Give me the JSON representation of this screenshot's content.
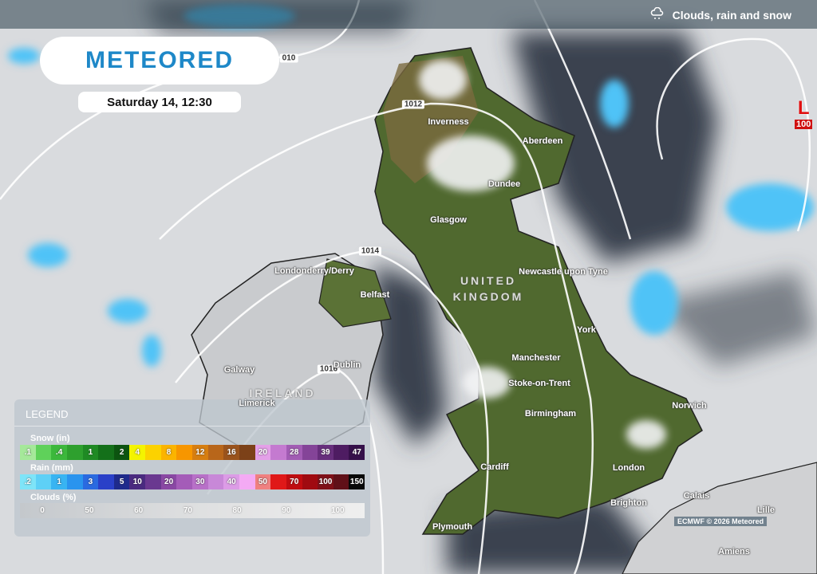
{
  "header": {
    "layer_title": "Clouds, rain and snow",
    "layer_icon": "cloud-rain-snow-icon"
  },
  "logo": "METEORED",
  "date": "Saturday 14, 12:30",
  "colors": {
    "land": "#4f6a2e",
    "cloud": "#e6e7e9",
    "dark_cloud": "#353d48",
    "rain": "#4fc3f7",
    "low": "#e01010",
    "brand": "#1e88c8"
  },
  "isobars": [
    "010",
    "1012",
    "1014",
    "1016"
  ],
  "low_pressure": {
    "label": "L",
    "value": "100"
  },
  "places": [
    {
      "name": "Inverness"
    },
    {
      "name": "Aberdeen"
    },
    {
      "name": "Dundee"
    },
    {
      "name": "Glasgow"
    },
    {
      "name": "Londonderry/Derry"
    },
    {
      "name": "Belfast"
    },
    {
      "name": "Newcastle upon Tyne"
    },
    {
      "name": "York"
    },
    {
      "name": "Manchester"
    },
    {
      "name": "Galway"
    },
    {
      "name": "Dublin"
    },
    {
      "name": "Limerick"
    },
    {
      "name": "Stoke-on-Trent"
    },
    {
      "name": "Birmingham"
    },
    {
      "name": "Norwich"
    },
    {
      "name": "Cardiff"
    },
    {
      "name": "London"
    },
    {
      "name": "Brighton"
    },
    {
      "name": "Plymouth"
    },
    {
      "name": "Calais"
    },
    {
      "name": "Amiens"
    },
    {
      "name": "Lille"
    }
  ],
  "countries": {
    "uk_line1": "UNITED",
    "uk_line2": "KINGDOM",
    "ireland": "IRELAND"
  },
  "legend": {
    "title": "LEGEND",
    "snow": {
      "label": "Snow (in)",
      "cells": [
        {
          "t": ".1",
          "c": "#a5e89a"
        },
        {
          "t": "",
          "c": "#5fd15a"
        },
        {
          "t": ".4",
          "c": "#3cb83c"
        },
        {
          "t": "",
          "c": "#2ea02e"
        },
        {
          "t": "1",
          "c": "#1f8a24"
        },
        {
          "t": "",
          "c": "#14701a"
        },
        {
          "t": "2",
          "c": "#0c5410"
        },
        {
          "t": "4",
          "c": "#f4f400"
        },
        {
          "t": "",
          "c": "#fcd200"
        },
        {
          "t": "8",
          "c": "#fbb400"
        },
        {
          "t": "",
          "c": "#f79600"
        },
        {
          "t": "12",
          "c": "#d77e10"
        },
        {
          "t": "",
          "c": "#b8661a"
        },
        {
          "t": "16",
          "c": "#9a531c"
        },
        {
          "t": "",
          "c": "#7c4118"
        },
        {
          "t": "20",
          "c": "#e4a0e8"
        },
        {
          "t": "",
          "c": "#c47ad0"
        },
        {
          "t": "28",
          "c": "#a25cb4"
        },
        {
          "t": "",
          "c": "#844498"
        },
        {
          "t": "39",
          "c": "#672e7c"
        },
        {
          "t": "",
          "c": "#4e1c62"
        },
        {
          "t": "47",
          "c": "#36104a"
        }
      ]
    },
    "rain": {
      "label": "Rain (mm)",
      "cells": [
        {
          "t": ".2",
          "c": "#7ee4f8"
        },
        {
          "t": "",
          "c": "#5ed0f6"
        },
        {
          "t": "1",
          "c": "#38b4f2"
        },
        {
          "t": "",
          "c": "#2a94ee"
        },
        {
          "t": "3",
          "c": "#2a6ae0"
        },
        {
          "t": "",
          "c": "#2a40c8"
        },
        {
          "t": "5",
          "c": "#1e2a8c"
        },
        {
          "t": "10",
          "c": "#4a2a80"
        },
        {
          "t": "",
          "c": "#6a3890"
        },
        {
          "t": "20",
          "c": "#8a48a4"
        },
        {
          "t": "",
          "c": "#a45cb8"
        },
        {
          "t": "30",
          "c": "#b870c8"
        },
        {
          "t": "",
          "c": "#c888d8"
        },
        {
          "t": "40",
          "c": "#dc9ce6"
        },
        {
          "t": "",
          "c": "#f4aaf4"
        },
        {
          "t": "50",
          "c": "#f08080"
        },
        {
          "t": "",
          "c": "#e01818"
        },
        {
          "t": "70",
          "c": "#c00c10"
        },
        {
          "t": "",
          "c": "#a00a10"
        },
        {
          "t": "100",
          "c": "#801018"
        },
        {
          "t": "",
          "c": "#601018"
        },
        {
          "t": "150",
          "c": "#080808"
        }
      ]
    },
    "clouds": {
      "label": "Clouds (%)",
      "ticks": [
        "0",
        "50",
        "60",
        "70",
        "80",
        "90",
        "100"
      ]
    }
  },
  "copyright": "ECMWF © 2026 Meteored"
}
